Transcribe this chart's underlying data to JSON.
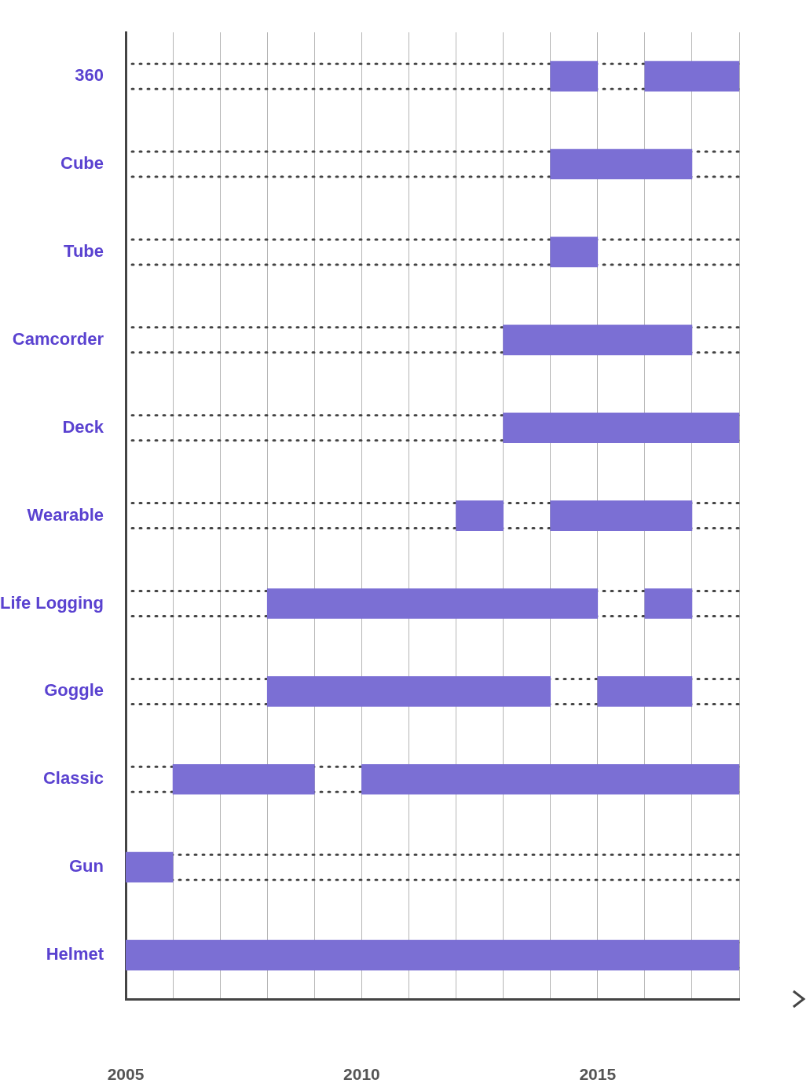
{
  "chart_data": {
    "type": "bar",
    "orientation": "horizontal",
    "categories": [
      "360",
      "Cube",
      "Tube",
      "Camcorder",
      "Deck",
      "Wearable",
      "Life Logging",
      "Goggle",
      "Classic",
      "Gun",
      "Helmet"
    ],
    "series": [
      {
        "color": "#7b6fd4",
        "base": [
          2014,
          2014,
          2014,
          2013,
          2013,
          2012,
          2008,
          2008,
          2006,
          2005,
          2005
        ],
        "values": [
          1,
          3,
          1,
          4,
          5,
          1,
          7,
          6,
          3,
          1,
          13
        ]
      },
      {
        "color": "#7b6fd4",
        "base": [
          2016,
          null,
          null,
          null,
          null,
          2014,
          2016,
          2015,
          2010,
          null,
          null
        ],
        "values": [
          2,
          null,
          null,
          null,
          null,
          3,
          1,
          2,
          8,
          null,
          null
        ]
      }
    ],
    "xlim": [
      2005,
      2018
    ],
    "xticks": [
      2005,
      {
        "value": 2006,
        "label": null
      },
      {
        "value": 2007,
        "label": null
      },
      {
        "value": 2008,
        "label": null
      },
      {
        "value": 2009,
        "label": null
      },
      2010,
      {
        "value": 2011,
        "label": null
      },
      {
        "value": 2012,
        "label": null
      },
      {
        "value": 2013,
        "label": null
      },
      {
        "value": 2014,
        "label": null
      },
      2015,
      {
        "value": 2016,
        "label": null
      },
      {
        "value": 2017,
        "label": null
      },
      {
        "value": 2018,
        "label": null
      }
    ],
    "grid": "x",
    "line_style": "dotted"
  }
}
